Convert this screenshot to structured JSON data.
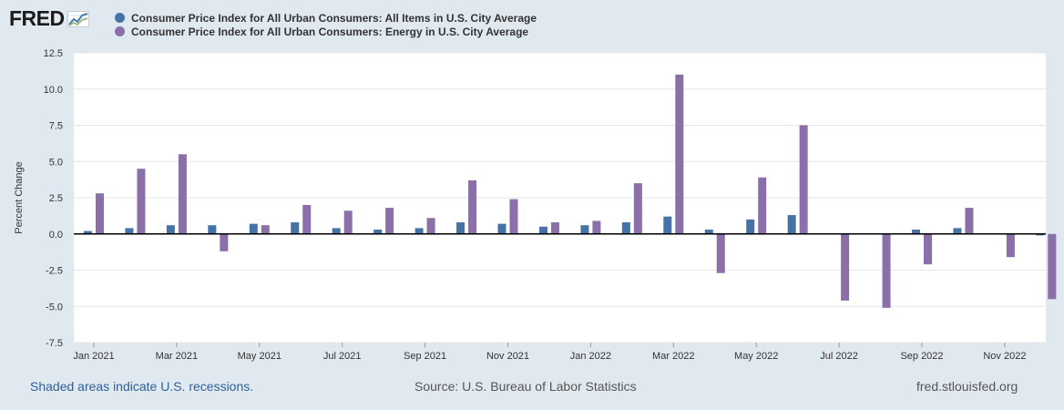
{
  "header": {
    "logo_text": "FRED",
    "logo_icon": "line-chart-icon"
  },
  "legend": [
    {
      "label": "Consumer Price Index for All Urban Consumers: All Items in U.S. City Average",
      "color": "#4572a7"
    },
    {
      "label": "Consumer Price Index for All Urban Consumers: Energy in U.S. City Average",
      "color": "#8a6fa8"
    }
  ],
  "chart_data": {
    "type": "bar",
    "title": "",
    "xlabel": "",
    "ylabel": "Percent Change",
    "ylim": [
      -7.5,
      12.5
    ],
    "yticks": [
      "12.5",
      "10.0",
      "7.5",
      "5.0",
      "2.5",
      "0.0",
      "-2.5",
      "-5.0",
      "-7.5"
    ],
    "ytick_values": [
      12.5,
      10.0,
      7.5,
      5.0,
      2.5,
      0.0,
      -2.5,
      -5.0,
      -7.5
    ],
    "categories": [
      "Jan 2021",
      "Feb 2021",
      "Mar 2021",
      "Apr 2021",
      "May 2021",
      "Jun 2021",
      "Jul 2021",
      "Aug 2021",
      "Sep 2021",
      "Oct 2021",
      "Nov 2021",
      "Dec 2021",
      "Jan 2022",
      "Feb 2022",
      "Mar 2022",
      "Apr 2022",
      "May 2022",
      "Jun 2022",
      "Jul 2022",
      "Aug 2022",
      "Sep 2022",
      "Oct 2022",
      "Nov 2022",
      "Dec 2022"
    ],
    "xtick_labels": [
      "Jan 2021",
      "Mar 2021",
      "May 2021",
      "Jul 2021",
      "Sep 2021",
      "Nov 2021",
      "Jan 2022",
      "Mar 2022",
      "May 2022",
      "Jul 2022",
      "Sep 2022",
      "Nov 2022"
    ],
    "series": [
      {
        "name": "Consumer Price Index for All Urban Consumers: All Items in U.S. City Average",
        "color": "#4572a7",
        "values": [
          0.2,
          0.4,
          0.6,
          0.6,
          0.7,
          0.8,
          0.4,
          0.3,
          0.4,
          0.8,
          0.7,
          0.5,
          0.6,
          0.8,
          1.2,
          0.3,
          1.0,
          1.3,
          0.0,
          0.0,
          0.3,
          0.4,
          0.0,
          -0.1
        ]
      },
      {
        "name": "Consumer Price Index for All Urban Consumers: Energy in U.S. City Average",
        "color": "#8a6fa8",
        "values": [
          2.8,
          4.5,
          5.5,
          -1.2,
          0.6,
          2.0,
          1.6,
          1.8,
          1.1,
          3.7,
          2.4,
          0.8,
          0.9,
          3.5,
          11.0,
          -2.7,
          3.9,
          7.5,
          -4.6,
          -5.1,
          -2.1,
          1.8,
          -1.6,
          -4.5
        ]
      }
    ]
  },
  "footer": {
    "recession_note": "Shaded areas indicate U.S. recessions.",
    "source": "Source: U.S. Bureau of Labor Statistics",
    "site": "fred.stlouisfed.org"
  }
}
